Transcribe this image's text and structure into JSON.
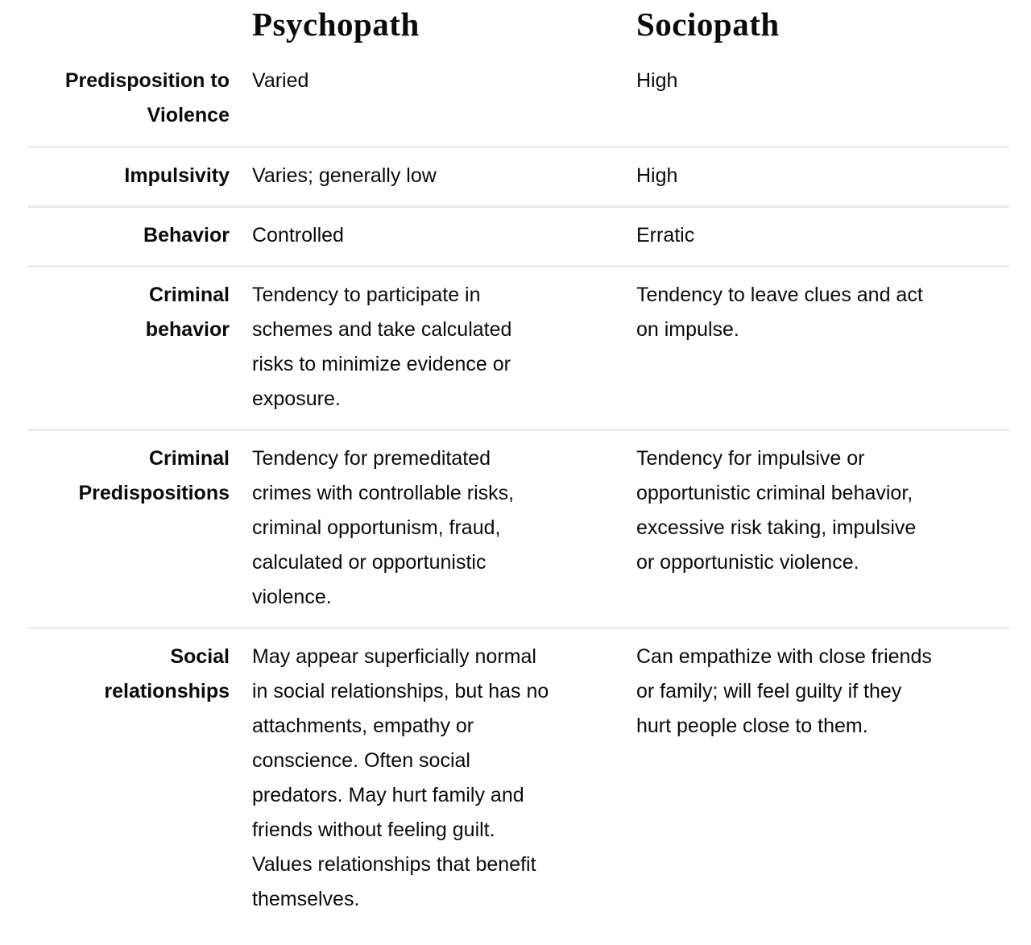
{
  "table": {
    "columns": [
      "Psychopath",
      "Sociopath"
    ],
    "rows": [
      {
        "label": "Predisposition to\nViolence",
        "psychopath": "Varied",
        "sociopath": "High"
      },
      {
        "label": "Impulsivity",
        "psychopath": "Varies; generally low",
        "sociopath": "High"
      },
      {
        "label": "Behavior",
        "psychopath": "Controlled",
        "sociopath": "Erratic"
      },
      {
        "label": "Criminal\nbehavior",
        "psychopath": "Tendency to participate in\nschemes and take calculated\nrisks to minimize evidence or\nexposure.",
        "sociopath": "Tendency to leave clues and act\non impulse."
      },
      {
        "label": "Criminal\nPredispositions",
        "psychopath": "Tendency for premeditated\ncrimes with controllable risks,\ncriminal opportunism, fraud,\ncalculated or opportunistic\nviolence.",
        "sociopath": "Tendency for impulsive or\nopportunistic criminal behavior,\nexcessive risk taking, impulsive\nor opportunistic violence."
      },
      {
        "label": "Social\nrelationships",
        "psychopath": "May appear superficially normal\nin social relationships, but has no\nattachments, empathy or\nconscience. Often social\npredators. May hurt family and\nfriends without feeling guilt.\nValues relationships that benefit\nthemselves.",
        "sociopath": "Can empathize with close friends\nor family; will feel guilty if they\nhurt people close to them."
      }
    ]
  },
  "colors": {
    "divider": "#ececec",
    "text": "#0b0b0b",
    "background": "#ffffff"
  }
}
